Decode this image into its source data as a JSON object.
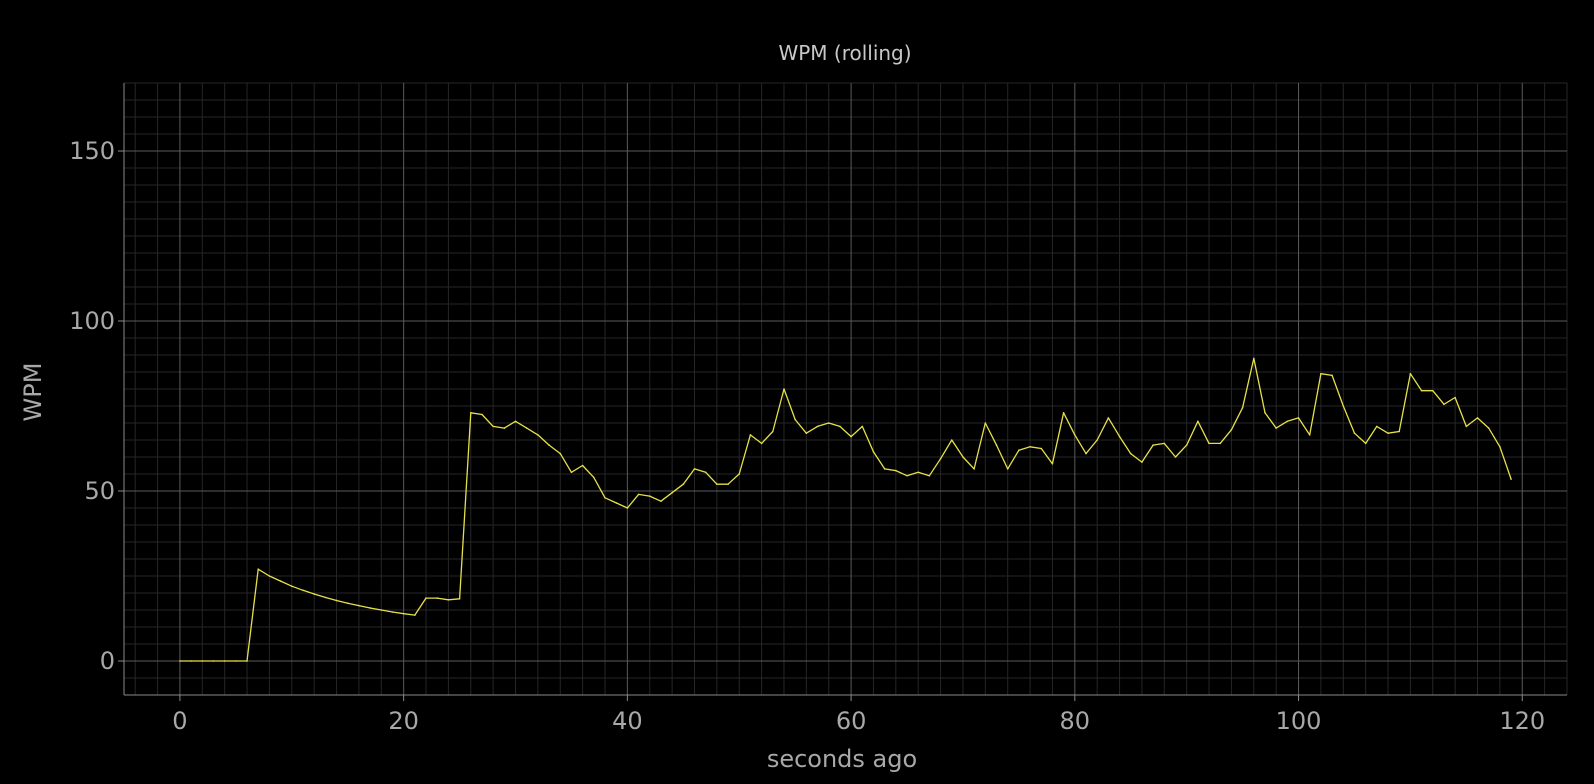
{
  "chart_data": {
    "type": "line",
    "title": "WPM (rolling)",
    "xlabel": "seconds ago",
    "ylabel": "WPM",
    "xlim": [
      -5,
      124
    ],
    "ylim": [
      -10,
      170
    ],
    "x_ticks": [
      0,
      20,
      40,
      60,
      80,
      100,
      120
    ],
    "y_ticks": [
      0,
      50,
      100,
      150
    ],
    "x_minor_step": 2,
    "y_minor_step": 5,
    "grid": true,
    "colors": {
      "background": "#000000",
      "line": "#e5e04a",
      "major_grid": "#5a5a5a",
      "minor_grid": "#262626",
      "axis": "#8a8a8a"
    },
    "series": [
      {
        "name": "",
        "x": [
          0,
          1,
          2,
          3,
          4,
          5,
          6,
          7,
          8,
          9,
          10,
          11,
          12,
          13,
          14,
          15,
          16,
          17,
          18,
          19,
          20,
          21,
          22,
          23,
          24,
          25,
          26,
          27,
          28,
          29,
          30,
          31,
          32,
          33,
          34,
          35,
          36,
          37,
          38,
          39,
          40,
          41,
          42,
          43,
          44,
          45,
          46,
          47,
          48,
          49,
          50,
          51,
          52,
          53,
          54,
          55,
          56,
          57,
          58,
          59,
          60,
          61,
          62,
          63,
          64,
          65,
          66,
          67,
          68,
          69,
          70,
          71,
          72,
          73,
          74,
          75,
          76,
          77,
          78,
          79,
          80,
          81,
          82,
          83,
          84,
          85,
          86,
          87,
          88,
          89,
          90,
          91,
          92,
          93,
          94,
          95,
          96,
          97,
          98,
          99,
          100,
          101,
          102,
          103,
          104,
          105,
          106,
          107,
          108,
          109,
          110,
          111,
          112,
          113,
          114,
          115,
          116,
          117,
          118,
          119
        ],
        "y": [
          0,
          0,
          0,
          0,
          0,
          0,
          0,
          27,
          25,
          23.5,
          22,
          20.8,
          19.7,
          18.7,
          17.8,
          17,
          16.3,
          15.6,
          15,
          14.4,
          13.9,
          13.5,
          18.5,
          18.5,
          18,
          18.3,
          73,
          72.5,
          69,
          68.5,
          70.5,
          68.5,
          66.5,
          63.5,
          61,
          55.5,
          57.5,
          54,
          48,
          46.5,
          45,
          49,
          48.5,
          47,
          49.5,
          52,
          56.5,
          55.5,
          52,
          52,
          55,
          66.5,
          64,
          67.5,
          80,
          71,
          67,
          69,
          70,
          69,
          66,
          69,
          61.5,
          56.5,
          56,
          54.5,
          55.5,
          54.5,
          59.5,
          65,
          60,
          56.5,
          70,
          63.5,
          56.5,
          62,
          63,
          62.5,
          58,
          73,
          66.5,
          61,
          65,
          71.5,
          66,
          61,
          58.5,
          63.5,
          64,
          60,
          63.5,
          70.5,
          64,
          64,
          68,
          74.5,
          89,
          73,
          68.5,
          70.5,
          71.5,
          66.5,
          84.5,
          84,
          75,
          67,
          64,
          69,
          67,
          67.5,
          84.5,
          79.5,
          79.5,
          75.5,
          77.5,
          69,
          71.5,
          68.5,
          63,
          53.5
        ]
      }
    ]
  }
}
